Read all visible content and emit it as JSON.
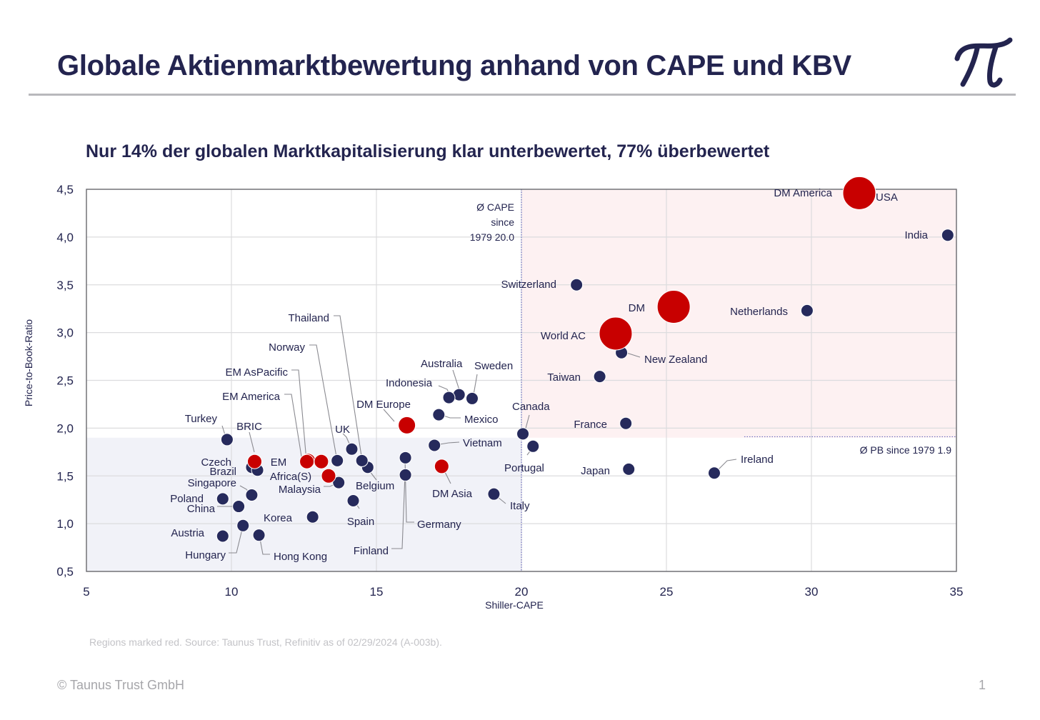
{
  "page": {
    "title": "Globale Aktienmarktbewertung anhand von CAPE und KBV",
    "subtitle": "Nur 14% der globalen Marktkapitalisierung klar unterbewertet, 77% überbewertet",
    "logo_icon": "pi-logo-icon",
    "footnote": "Regions marked red. Source: Taunus Trust, Refinitiv as of 02/29/2024 (A-003b).",
    "copyright": "© Taunus Trust GmbH",
    "page_number": "1"
  },
  "colors": {
    "text_dark": "#23244f",
    "country_dot": "#262a5c",
    "region_dot": "#c80000",
    "overvalued_zone": "#fdf1f2",
    "undervalued_zone": "#f1f2f8",
    "gridline": "#dcdcde",
    "average_line": "#6d6fc2"
  },
  "chart_data": {
    "type": "scatter",
    "xlabel": "Shiller-CAPE",
    "ylabel": "Price-to-Book-Ratio",
    "xlim": [
      5,
      35
    ],
    "ylim": [
      0.5,
      4.5
    ],
    "xticks": [
      "5",
      "10",
      "15",
      "20",
      "25",
      "30",
      "35"
    ],
    "yticks": [
      "0,5",
      "1,0",
      "1,5",
      "2,0",
      "2,5",
      "3,0",
      "3,5",
      "4,0",
      "4,5"
    ],
    "grid": true,
    "reference_lines": {
      "cape_average": {
        "value": 20.0,
        "label": [
          "Ø CAPE",
          "since",
          "1979 20.0"
        ]
      },
      "pb_average": {
        "value": 1.9,
        "label": "Ø PB since 1979 1.9"
      }
    },
    "zones": [
      {
        "name": "overvalued",
        "x_from": 20.0,
        "y_from": 1.9
      },
      {
        "name": "undervalued",
        "x_to": 20.0,
        "y_to": 1.9
      }
    ],
    "series": [
      {
        "name": "Countries",
        "marker": "dot",
        "points": [
          {
            "label": "India",
            "x": 34.7,
            "y": 4.02
          },
          {
            "label": "Netherlands",
            "x": 29.85,
            "y": 3.23
          },
          {
            "label": "Switzerland",
            "x": 21.9,
            "y": 3.5
          },
          {
            "label": "New Zealand",
            "x": 23.45,
            "y": 2.79
          },
          {
            "label": "Taiwan",
            "x": 22.7,
            "y": 2.54
          },
          {
            "label": "France",
            "x": 23.6,
            "y": 2.05
          },
          {
            "label": "Japan",
            "x": 23.7,
            "y": 1.57
          },
          {
            "label": "Ireland",
            "x": 26.65,
            "y": 1.53
          },
          {
            "label": "Canada",
            "x": 20.05,
            "y": 1.94
          },
          {
            "label": "Portugal",
            "x": 20.4,
            "y": 1.81
          },
          {
            "label": "Italy",
            "x": 19.05,
            "y": 1.31
          },
          {
            "label": "Sweden",
            "x": 18.3,
            "y": 2.31
          },
          {
            "label": "Australia",
            "x": 17.85,
            "y": 2.35
          },
          {
            "label": "Indonesia",
            "x": 17.5,
            "y": 2.32
          },
          {
            "label": "Mexico",
            "x": 17.15,
            "y": 2.14
          },
          {
            "label": "Vietnam",
            "x": 17.0,
            "y": 1.82
          },
          {
            "label": "Germany",
            "x": 16.0,
            "y": 1.69
          },
          {
            "label": "Finland",
            "x": 16.0,
            "y": 1.51
          },
          {
            "label": "Belgium",
            "x": 14.7,
            "y": 1.59
          },
          {
            "label": "UK",
            "x": 14.15,
            "y": 1.78
          },
          {
            "label": "Thailand",
            "x": 14.5,
            "y": 1.66
          },
          {
            "label": "Norway",
            "x": 13.65,
            "y": 1.66
          },
          {
            "label": "Malaysia",
            "x": 13.7,
            "y": 1.43
          },
          {
            "label": "Spain",
            "x": 14.2,
            "y": 1.24
          },
          {
            "label": "Korea",
            "x": 12.8,
            "y": 1.07
          },
          {
            "label": "Turkey",
            "x": 9.85,
            "y": 1.88
          },
          {
            "label": "Czech",
            "x": 10.7,
            "y": 1.59
          },
          {
            "label": "Brazil",
            "x": 10.9,
            "y": 1.56
          },
          {
            "label": "Singapore",
            "x": 10.7,
            "y": 1.3
          },
          {
            "label": "Poland",
            "x": 9.7,
            "y": 1.26
          },
          {
            "label": "China",
            "x": 10.25,
            "y": 1.18
          },
          {
            "label": "Austria",
            "x": 9.7,
            "y": 0.87
          },
          {
            "label": "Hungary",
            "x": 10.4,
            "y": 0.98
          },
          {
            "label": "Hong Kong",
            "x": 10.95,
            "y": 0.88
          }
        ]
      },
      {
        "name": "Regions",
        "marker": "dot",
        "points": [
          {
            "label": "DM America",
            "x": 31.65,
            "y": 4.46,
            "size": "xl"
          },
          {
            "label": "USA",
            "x": 31.65,
            "y": 4.46,
            "size": "xl"
          },
          {
            "label": "DM",
            "x": 25.25,
            "y": 3.27,
            "size": "xl"
          },
          {
            "label": "World AC",
            "x": 23.25,
            "y": 2.99,
            "size": "xl"
          },
          {
            "label": "DM Europe",
            "x": 16.05,
            "y": 2.03,
            "size": "md"
          },
          {
            "label": "DM Asia",
            "x": 17.25,
            "y": 1.6,
            "size": "sm"
          },
          {
            "label": "EM AsPacific",
            "x": 12.65,
            "y": 1.66,
            "size": "sm"
          },
          {
            "label": "EM America",
            "x": 13.1,
            "y": 1.65,
            "size": "sm"
          },
          {
            "label": "BRIC",
            "x": 10.8,
            "y": 1.65,
            "size": "sm"
          },
          {
            "label": "EM",
            "x": 12.6,
            "y": 1.65,
            "size": "sm"
          },
          {
            "label": "Africa(S)",
            "x": 13.35,
            "y": 1.5,
            "size": "sm"
          }
        ]
      }
    ]
  }
}
